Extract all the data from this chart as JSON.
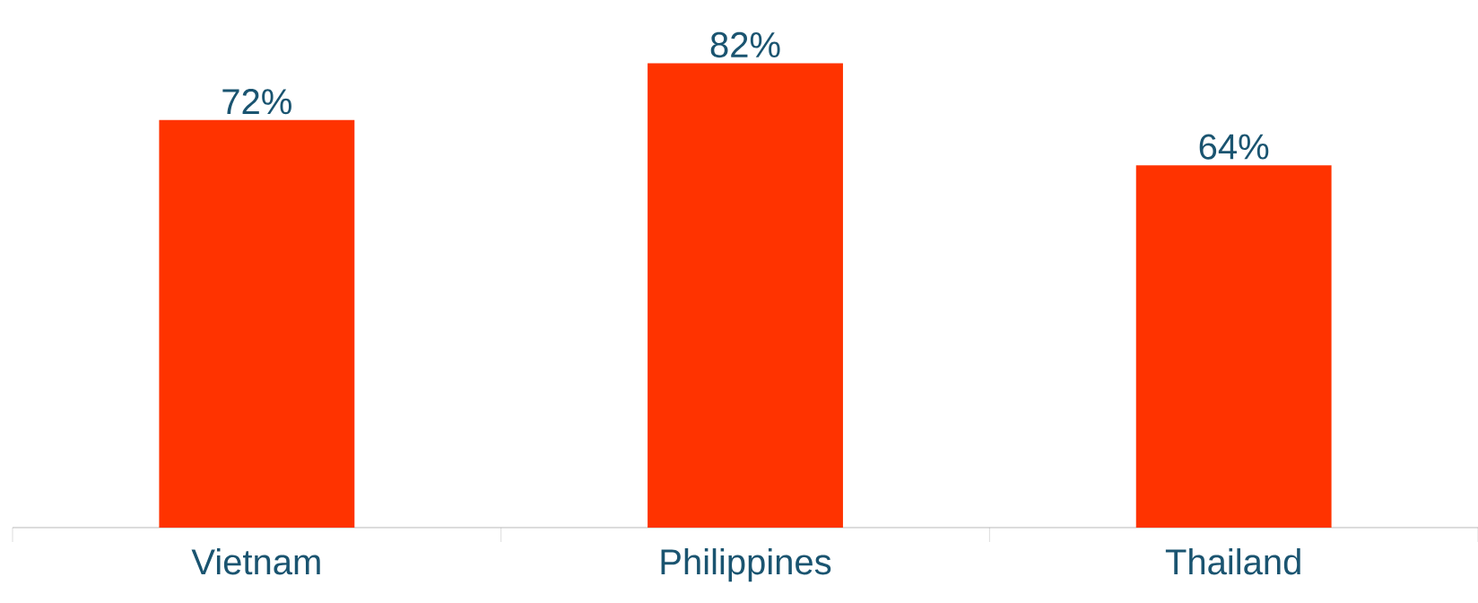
{
  "chart_data": {
    "type": "bar",
    "categories": [
      "Vietnam",
      "Philippines",
      "Thailand"
    ],
    "values": [
      72,
      82,
      64
    ],
    "value_labels": [
      "72%",
      "82%",
      "64%"
    ],
    "color": "#ff3300"
  }
}
